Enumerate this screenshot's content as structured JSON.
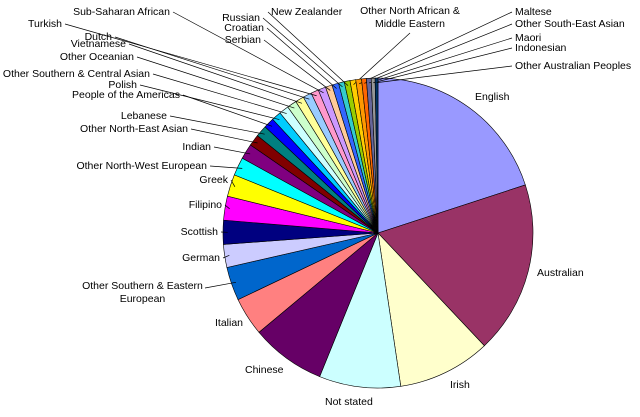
{
  "chart_data": {
    "type": "pie",
    "categories": [
      "English",
      "Australian",
      "Irish",
      "Not stated",
      "Chinese",
      "Italian",
      "Other Southern & Eastern European",
      "German",
      "Scottish",
      "Filipino",
      "Greek",
      "Other North-West European",
      "Indian",
      "Other North-East Asian",
      "Lebanese",
      "People of the Americas",
      "Polish",
      "Other Southern & Central Asian",
      "Other Oceanian",
      "Vietnamese",
      "Dutch",
      "Turkish",
      "Sub-Saharan African",
      "Serbian",
      "Croatian",
      "Russian",
      "New Zealander",
      "Other North African & Middle Eastern",
      "Maltese",
      "Other South-East Asian",
      "Maori",
      "Indonesian",
      "Other Australian Peoples"
    ],
    "values": [
      20,
      18,
      9.7,
      8.5,
      7.8,
      4,
      3.5,
      2.4,
      2.5,
      2.5,
      2.3,
      1.9,
      1.6,
      1.2,
      1.2,
      1.1,
      1.0,
      1.0,
      1.0,
      0.9,
      0.9,
      0.8,
      0.8,
      0.7,
      0.7,
      0.6,
      0.6,
      0.6,
      0.6,
      0.5,
      0.5,
      0.4,
      0.3
    ],
    "colors": [
      "#9999ff",
      "#993366",
      "#ffffcc",
      "#ccffff",
      "#660066",
      "#ff8080",
      "#0066cc",
      "#ccccff",
      "#000080",
      "#ff00ff",
      "#ffff00",
      "#00ffff",
      "#800080",
      "#800000",
      "#008080",
      "#0000ff",
      "#00ccff",
      "#ccffff",
      "#ccffcc",
      "#ffff99",
      "#99ccff",
      "#ff99cc",
      "#cc99ff",
      "#ffcc99",
      "#3366ff",
      "#33cccc",
      "#99cc00",
      "#ffcc00",
      "#ff9900",
      "#ff6600",
      "#666699",
      "#969696",
      "#003366"
    ]
  }
}
